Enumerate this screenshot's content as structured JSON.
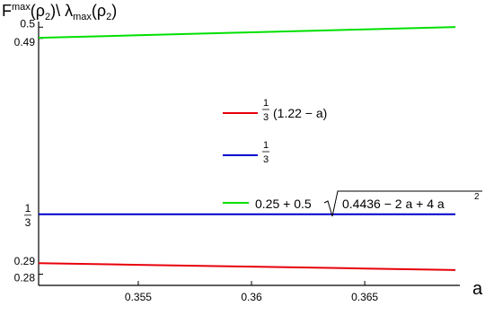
{
  "chart_data": {
    "type": "line",
    "xlabel": "a",
    "ylabel": "F<sup>max</sup>(ρ<sub>2</sub>)\\ λ<sub>max</sub>(ρ<sub>2</sub>)",
    "ylabel_parts": {
      "f": "F",
      "max_sup": "max",
      "rho1": "(ρ",
      "sub1": "2",
      "close1": ")\\ λ",
      "max_sub": "max",
      "rho2": "(ρ",
      "sub2": "2",
      "close2": ")"
    },
    "xlim": [
      0.3506,
      0.3692
    ],
    "ylim": [
      0.27,
      0.505
    ],
    "x_ticks": [
      0.355,
      0.36,
      0.365
    ],
    "x_tick_labels": [
      "0.355",
      "0.36",
      "0.365"
    ],
    "y_ticks": [
      0.28,
      0.29,
      0.3333,
      0.49,
      0.5
    ],
    "y_tick_labels": [
      "0.28",
      "0.29",
      "1/3",
      "0.49",
      "0.5"
    ],
    "series": [
      {
        "color": "#e8000b",
        "x": [
          0.3506,
          0.355,
          0.36,
          0.365,
          0.369
        ],
        "y": [
          0.2898,
          0.2883,
          0.2867,
          0.285,
          0.2837
        ],
        "legend_frac": [
          "1",
          "3"
        ],
        "legend_expr": "(1.22 − a)"
      },
      {
        "color": "#0000cc",
        "x": [
          0.3506,
          0.369
        ],
        "y": [
          0.3333,
          0.3333
        ],
        "legend_frac": [
          "1",
          "3"
        ]
      },
      {
        "color": "#00e000",
        "x": [
          0.3506,
          0.355,
          0.36,
          0.365,
          0.369
        ],
        "y": [
          0.4905,
          0.4928,
          0.4954,
          0.498,
          0.5001
        ],
        "legend_expr": "0.25 + 0.5",
        "legend_sqrt": "0.4436 − 2 a + 4 a",
        "legend_exp": "2"
      }
    ]
  }
}
